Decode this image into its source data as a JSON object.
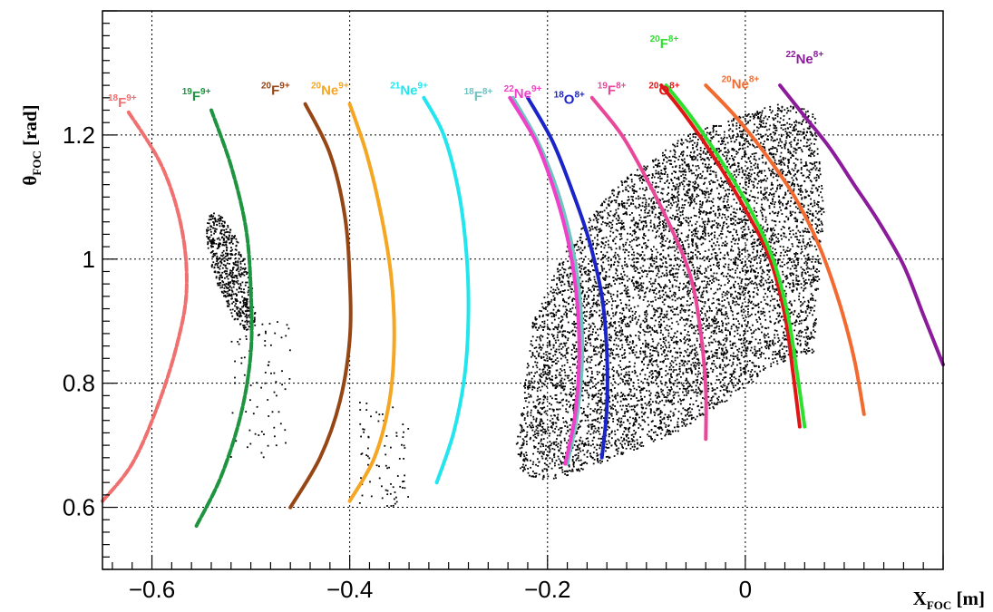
{
  "chart_data": {
    "type": "scatter",
    "title": "",
    "xlabel": {
      "main": "X",
      "sub": "FOC",
      "unit": " [m]"
    },
    "ylabel": {
      "main": "θ",
      "sub": "FOC",
      "unit": " [rad]"
    },
    "xlim": [
      -0.65,
      0.2
    ],
    "ylim": [
      0.5,
      1.4
    ],
    "xticks": [
      -0.6,
      -0.4,
      -0.2,
      0
    ],
    "xtick_labels": [
      "−0.6",
      "−0.4",
      "−0.2",
      "0"
    ],
    "yticks": [
      0.6,
      0.8,
      1.0,
      1.2
    ],
    "ytick_labels": [
      "0.6",
      "0.8",
      "1",
      "1.2"
    ],
    "grid": true,
    "series": [
      {
        "name": "18F9+",
        "mass": "18",
        "element": "F",
        "charge": "9+",
        "color": "#f07070",
        "dashed": true,
        "x": [
          -0.65,
          -0.62,
          -0.595,
          -0.575,
          -0.565,
          -0.57,
          -0.59,
          -0.625
        ],
        "y": [
          0.61,
          0.67,
          0.76,
          0.86,
          0.95,
          1.05,
          1.15,
          1.24
        ]
      },
      {
        "name": "19F9+",
        "mass": "19",
        "element": "F",
        "charge": "9+",
        "color": "#1e9440",
        "dashed": true,
        "x": [
          -0.555,
          -0.53,
          -0.51,
          -0.5,
          -0.5,
          -0.505,
          -0.52,
          -0.54
        ],
        "y": [
          0.57,
          0.65,
          0.75,
          0.85,
          0.95,
          1.05,
          1.15,
          1.24
        ]
      },
      {
        "name": "20F9+",
        "mass": "20",
        "element": "F",
        "charge": "9+",
        "color": "#964514",
        "dashed": false,
        "x": [
          -0.46,
          -0.43,
          -0.41,
          -0.4,
          -0.4,
          -0.405,
          -0.42,
          -0.445
        ],
        "y": [
          0.6,
          0.68,
          0.77,
          0.87,
          0.97,
          1.07,
          1.17,
          1.25
        ]
      },
      {
        "name": "20Ne9+",
        "mass": "20",
        "element": "Ne",
        "charge": "9+",
        "color": "#f5a623",
        "dashed": false,
        "x": [
          -0.4,
          -0.375,
          -0.36,
          -0.355,
          -0.358,
          -0.368,
          -0.383,
          -0.4
        ],
        "y": [
          0.61,
          0.68,
          0.77,
          0.87,
          0.97,
          1.07,
          1.17,
          1.25
        ]
      },
      {
        "name": "21Ne9+",
        "mass": "21",
        "element": "Ne",
        "charge": "9+",
        "color": "#22e5ee",
        "dashed": false,
        "x": [
          -0.312,
          -0.295,
          -0.284,
          -0.28,
          -0.282,
          -0.29,
          -0.305,
          -0.325
        ],
        "y": [
          0.64,
          0.72,
          0.81,
          0.91,
          1.01,
          1.11,
          1.2,
          1.26
        ]
      },
      {
        "name": "18F8+",
        "mass": "18",
        "element": "F",
        "charge": "8+",
        "color": "#6fc3c0",
        "dashed": false,
        "x": [
          -0.18,
          -0.17,
          -0.165,
          -0.167,
          -0.175,
          -0.19,
          -0.21,
          -0.235
        ],
        "y": [
          0.67,
          0.75,
          0.84,
          0.93,
          1.02,
          1.11,
          1.19,
          1.26
        ]
      },
      {
        "name": "22Ne9+",
        "mass": "22",
        "element": "Ne",
        "charge": "9+",
        "color": "#f03fc9",
        "dashed": false,
        "x": [
          -0.182,
          -0.172,
          -0.168,
          -0.17,
          -0.178,
          -0.193,
          -0.212,
          -0.238
        ],
        "y": [
          0.67,
          0.75,
          0.84,
          0.93,
          1.02,
          1.11,
          1.19,
          1.26
        ]
      },
      {
        "name": "18O8+",
        "mass": "18",
        "element": "O",
        "charge": "8+",
        "color": "#1b24c9",
        "dashed": false,
        "x": [
          -0.145,
          -0.14,
          -0.14,
          -0.145,
          -0.158,
          -0.175,
          -0.195,
          -0.22
        ],
        "y": [
          0.68,
          0.76,
          0.85,
          0.94,
          1.03,
          1.11,
          1.19,
          1.26
        ]
      },
      {
        "name": "19F8+",
        "mass": "19",
        "element": "F",
        "charge": "8+",
        "color": "#e8479a",
        "dashed": false,
        "x": [
          -0.04,
          -0.04,
          -0.045,
          -0.055,
          -0.075,
          -0.1,
          -0.125,
          -0.155
        ],
        "y": [
          0.71,
          0.79,
          0.88,
          0.97,
          1.05,
          1.13,
          1.2,
          1.26
        ]
      },
      {
        "name": "20O8+",
        "mass": "20",
        "element": "O",
        "charge": "8+",
        "color": "#e01515",
        "dashed": false,
        "x": [
          0.055,
          0.048,
          0.04,
          0.025,
          0.0,
          -0.03,
          -0.06,
          -0.085
        ],
        "y": [
          0.73,
          0.82,
          0.91,
          1.0,
          1.08,
          1.16,
          1.23,
          1.28
        ]
      },
      {
        "name": "20F8+",
        "mass": "20",
        "element": "F",
        "charge": "8+",
        "color": "#2ee02e",
        "dashed": false,
        "x": [
          0.06,
          0.052,
          0.043,
          0.028,
          0.005,
          -0.025,
          -0.055,
          -0.08
        ],
        "y": [
          0.73,
          0.82,
          0.91,
          1.0,
          1.08,
          1.16,
          1.23,
          1.28
        ]
      },
      {
        "name": "20Ne8+",
        "mass": "20",
        "element": "Ne",
        "charge": "8+",
        "color": "#f26a30",
        "dashed": false,
        "x": [
          0.12,
          0.11,
          0.095,
          0.075,
          0.05,
          0.02,
          -0.01,
          -0.04
        ],
        "y": [
          0.75,
          0.84,
          0.93,
          1.02,
          1.1,
          1.17,
          1.23,
          1.28
        ]
      },
      {
        "name": "22Ne8+",
        "mass": "22",
        "element": "Ne",
        "charge": "8+",
        "color": "#8b1b9b",
        "dashed": false,
        "x": [
          0.2,
          0.18,
          0.16,
          0.135,
          0.11,
          0.085,
          0.06,
          0.035
        ],
        "y": [
          0.83,
          0.91,
          0.99,
          1.06,
          1.12,
          1.18,
          1.23,
          1.28
        ]
      }
    ],
    "labels": [
      {
        "series": "18F9+",
        "x": -0.63,
        "y": 1.245
      },
      {
        "series": "19F9+",
        "x": -0.555,
        "y": 1.255
      },
      {
        "series": "20F9+",
        "x": -0.475,
        "y": 1.265
      },
      {
        "series": "20Ne9+",
        "x": -0.42,
        "y": 1.265
      },
      {
        "series": "21Ne9+",
        "x": -0.34,
        "y": 1.265
      },
      {
        "series": "18F8+",
        "x": -0.27,
        "y": 1.255
      },
      {
        "series": "22Ne9+",
        "x": -0.225,
        "y": 1.26
      },
      {
        "series": "18O8+",
        "x": -0.178,
        "y": 1.25
      },
      {
        "series": "19F8+",
        "x": -0.135,
        "y": 1.265
      },
      {
        "series": "20F8+",
        "x": -0.082,
        "y": 1.34
      },
      {
        "series": "20O8+",
        "x": -0.082,
        "y": 1.265
      },
      {
        "series": "20Ne8+",
        "x": -0.005,
        "y": 1.275
      },
      {
        "series": "22Ne8+",
        "x": 0.06,
        "y": 1.315
      }
    ],
    "background_regions": [
      {
        "name": "events-main",
        "color": "#000000",
        "count": 7500,
        "polygon": [
          [
            -0.235,
            0.66
          ],
          [
            -0.215,
            0.9
          ],
          [
            -0.18,
            1.02
          ],
          [
            -0.13,
            1.12
          ],
          [
            -0.06,
            1.2
          ],
          [
            0.03,
            1.25
          ],
          [
            0.07,
            1.24
          ],
          [
            0.08,
            1.08
          ],
          [
            0.075,
            0.96
          ],
          [
            0.07,
            0.85
          ],
          [
            0.03,
            0.83
          ],
          [
            -0.01,
            0.78
          ],
          [
            -0.07,
            0.72
          ],
          [
            -0.13,
            0.68
          ],
          [
            -0.2,
            0.64
          ]
        ]
      },
      {
        "name": "events-blob",
        "color": "#000000",
        "count": 600,
        "ellipse": {
          "cx": -0.52,
          "cy": 0.98,
          "rx": 0.018,
          "ry": 0.095,
          "tilt": -0.18
        }
      },
      {
        "name": "events-sparse",
        "color": "#000000",
        "count": 160,
        "ranges": [
          [
            -0.52,
            -0.46,
            0.68,
            0.9
          ],
          [
            -0.39,
            -0.34,
            0.6,
            0.77
          ]
        ]
      }
    ]
  }
}
